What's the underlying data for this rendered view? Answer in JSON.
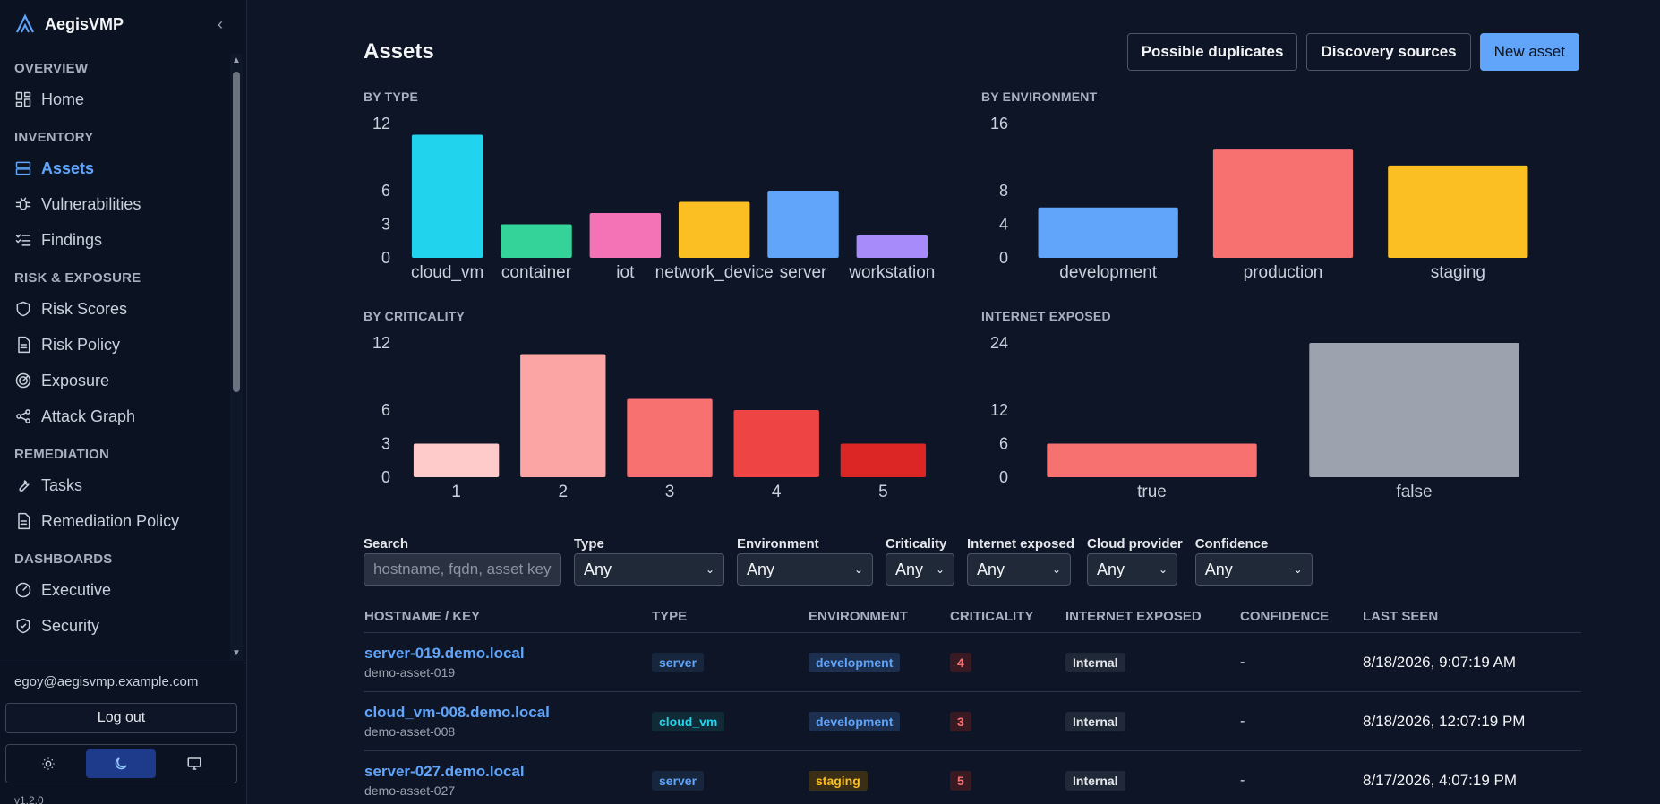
{
  "app": {
    "name": "AegisVMP",
    "version": "v1.2.0"
  },
  "sidebar": {
    "sections": [
      {
        "label": "OVERVIEW",
        "items": [
          {
            "label": "Home",
            "icon": "dashboard-icon"
          }
        ]
      },
      {
        "label": "INVENTORY",
        "items": [
          {
            "label": "Assets",
            "icon": "server-icon",
            "active": true
          },
          {
            "label": "Vulnerabilities",
            "icon": "bug-icon"
          },
          {
            "label": "Findings",
            "icon": "checklist-icon"
          }
        ]
      },
      {
        "label": "RISK & EXPOSURE",
        "items": [
          {
            "label": "Risk Scores",
            "icon": "shield-icon"
          },
          {
            "label": "Risk Policy",
            "icon": "document-icon"
          },
          {
            "label": "Exposure",
            "icon": "radar-icon"
          },
          {
            "label": "Attack Graph",
            "icon": "share-icon"
          }
        ]
      },
      {
        "label": "REMEDIATION",
        "items": [
          {
            "label": "Tasks",
            "icon": "wrench-icon"
          },
          {
            "label": "Remediation Policy",
            "icon": "document-icon"
          }
        ]
      },
      {
        "label": "DASHBOARDS",
        "items": [
          {
            "label": "Executive",
            "icon": "gauge-icon"
          },
          {
            "label": "Security",
            "icon": "shield-check-icon"
          }
        ]
      }
    ],
    "user_email": "egoy@aegisvmp.example.com",
    "logout_label": "Log out",
    "theme_options": [
      "light",
      "dark",
      "system"
    ],
    "theme_selected": "dark"
  },
  "page": {
    "title": "Assets",
    "buttons": {
      "duplicates": "Possible duplicates",
      "discovery": "Discovery sources",
      "new_asset": "New asset"
    }
  },
  "chart_data": [
    {
      "id": "by_type",
      "title": "BY TYPE",
      "type": "bar",
      "categories": [
        "cloud_vm",
        "container",
        "iot",
        "network_device",
        "server",
        "workstation"
      ],
      "values": [
        11,
        3,
        4,
        5,
        6,
        2
      ],
      "yticks": [
        0,
        3,
        6,
        12
      ],
      "ylim": [
        0,
        12
      ],
      "colors": [
        "#22d3ee",
        "#34d399",
        "#f472b6",
        "#fbbf24",
        "#60a5fa",
        "#a78bfa"
      ]
    },
    {
      "id": "by_env",
      "title": "BY ENVIRONMENT",
      "type": "bar",
      "categories": [
        "development",
        "production",
        "staging"
      ],
      "values": [
        6,
        13,
        11
      ],
      "yticks": [
        0,
        4,
        8,
        16
      ],
      "ylim": [
        0,
        16
      ],
      "colors": [
        "#60a5fa",
        "#f87171",
        "#fbbf24"
      ]
    },
    {
      "id": "by_crit",
      "title": "BY CRITICALITY",
      "type": "bar",
      "categories": [
        "1",
        "2",
        "3",
        "4",
        "5"
      ],
      "values": [
        3,
        11,
        7,
        6,
        3
      ],
      "yticks": [
        0,
        3,
        6,
        12
      ],
      "ylim": [
        0,
        12
      ],
      "colors": [
        "#fecaca",
        "#fca5a5",
        "#f87171",
        "#ef4444",
        "#dc2626"
      ]
    },
    {
      "id": "internet",
      "title": "INTERNET EXPOSED",
      "type": "bar",
      "categories": [
        "true",
        "false"
      ],
      "values": [
        6,
        24
      ],
      "yticks": [
        0,
        6,
        12,
        24
      ],
      "ylim": [
        0,
        24
      ],
      "colors": [
        "#f87171",
        "#9ca3af"
      ]
    }
  ],
  "filters": {
    "search": {
      "label": "Search",
      "placeholder": "hostname, fqdn, asset key"
    },
    "selects": [
      {
        "label": "Type",
        "value": "Any"
      },
      {
        "label": "Environment",
        "value": "Any"
      },
      {
        "label": "Criticality",
        "value": "Any"
      },
      {
        "label": "Internet exposed",
        "value": "Any"
      },
      {
        "label": "Cloud provider",
        "value": "Any"
      },
      {
        "label": "Confidence",
        "value": "Any"
      }
    ]
  },
  "table": {
    "headers": [
      "HOSTNAME / KEY",
      "TYPE",
      "ENVIRONMENT",
      "CRITICALITY",
      "INTERNET EXPOSED",
      "CONFIDENCE",
      "LAST SEEN"
    ],
    "rows": [
      {
        "host": "server-019.demo.local",
        "key": "demo-asset-019",
        "type": "server",
        "env": "development",
        "crit": "4",
        "exposed": "Internal",
        "confidence": "-",
        "last_seen": "8/18/2026, 9:07:19 AM"
      },
      {
        "host": "cloud_vm-008.demo.local",
        "key": "demo-asset-008",
        "type": "cloud_vm",
        "env": "development",
        "crit": "3",
        "exposed": "Internal",
        "confidence": "-",
        "last_seen": "8/18/2026, 12:07:19 PM"
      },
      {
        "host": "server-027.demo.local",
        "key": "demo-asset-027",
        "type": "server",
        "env": "staging",
        "crit": "5",
        "exposed": "Internal",
        "confidence": "-",
        "last_seen": "8/17/2026, 4:07:19 PM"
      }
    ]
  }
}
